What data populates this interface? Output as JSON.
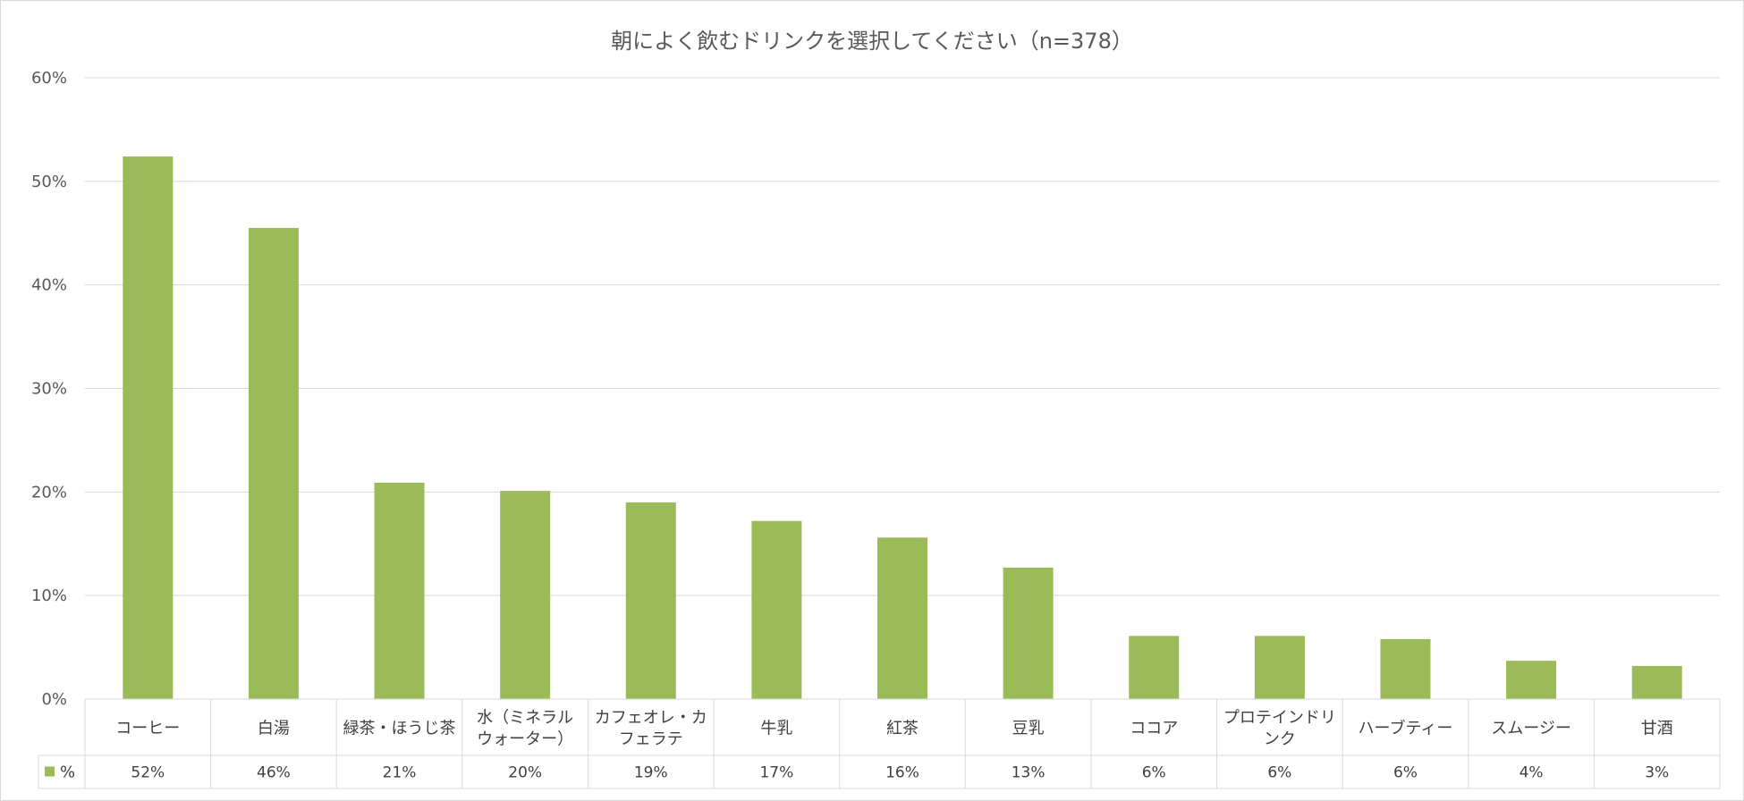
{
  "chart_data": {
    "type": "bar",
    "title": "朝によく飲むドリンクを選択してください（n=378）",
    "categories": [
      [
        "コーヒー"
      ],
      [
        "白湯"
      ],
      [
        "緑茶・ほうじ茶"
      ],
      [
        "水（ミネラル",
        "ウォーター）"
      ],
      [
        "カフェオレ・カ",
        "フェラテ"
      ],
      [
        "牛乳"
      ],
      [
        "紅茶"
      ],
      [
        "豆乳"
      ],
      [
        "ココア"
      ],
      [
        "プロテインドリ",
        "ンク"
      ],
      [
        "ハーブティー"
      ],
      [
        "スムージー"
      ],
      [
        "甘酒"
      ]
    ],
    "series": [
      {
        "name": "%",
        "values": [
          52.4,
          45.5,
          20.9,
          20.1,
          19.0,
          17.2,
          15.6,
          12.7,
          6.1,
          6.1,
          5.8,
          3.7,
          3.2
        ],
        "labels": [
          "52%",
          "46%",
          "21%",
          "20%",
          "19%",
          "17%",
          "16%",
          "13%",
          "6%",
          "6%",
          "6%",
          "4%",
          "3%"
        ],
        "color": "#9bbb59"
      }
    ],
    "ylim": [
      0,
      60
    ],
    "yticks": [
      0,
      10,
      20,
      30,
      40,
      50,
      60
    ],
    "ytick_labels": [
      "0%",
      "10%",
      "20%",
      "30%",
      "40%",
      "50%",
      "60%"
    ],
    "grid": true,
    "data_table": true,
    "legend": "data-table-left"
  }
}
